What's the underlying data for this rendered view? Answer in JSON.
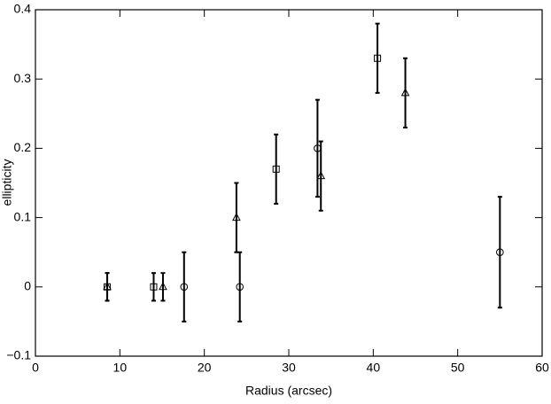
{
  "chart_data": {
    "type": "scatter",
    "xlabel": "Radius (arcsec)",
    "ylabel": "ellipticity",
    "xlim": [
      0,
      60
    ],
    "ylim": [
      -0.1,
      0.4
    ],
    "xticks": [
      0,
      10,
      20,
      30,
      40,
      50,
      60
    ],
    "yticks": [
      {
        "value": -0.1,
        "label": "−0.1"
      },
      0,
      0.1,
      0.2,
      0.3,
      0.4
    ],
    "series": [
      {
        "marker": "square",
        "color": "#000000",
        "x": [
          8.5,
          14.0,
          28.5,
          40.5
        ],
        "values": [
          0,
          0,
          0.17,
          0.33
        ],
        "error": [
          0.02,
          0.02,
          0.05,
          0.05
        ]
      },
      {
        "marker": "triangle",
        "color": "#000000",
        "x": [
          8.5,
          15.1,
          23.8,
          33.8,
          43.8
        ],
        "values": [
          0,
          0,
          0.1,
          0.16,
          0.28
        ],
        "error": [
          0.02,
          0.02,
          0.05,
          0.05,
          0.05
        ]
      },
      {
        "marker": "circle",
        "color": "#000000",
        "x": [
          17.6,
          24.2,
          33.4,
          55.0
        ],
        "values": [
          0,
          0,
          0.2,
          0.05
        ],
        "error": [
          0.05,
          0.05,
          0.07,
          0.08
        ]
      }
    ]
  }
}
